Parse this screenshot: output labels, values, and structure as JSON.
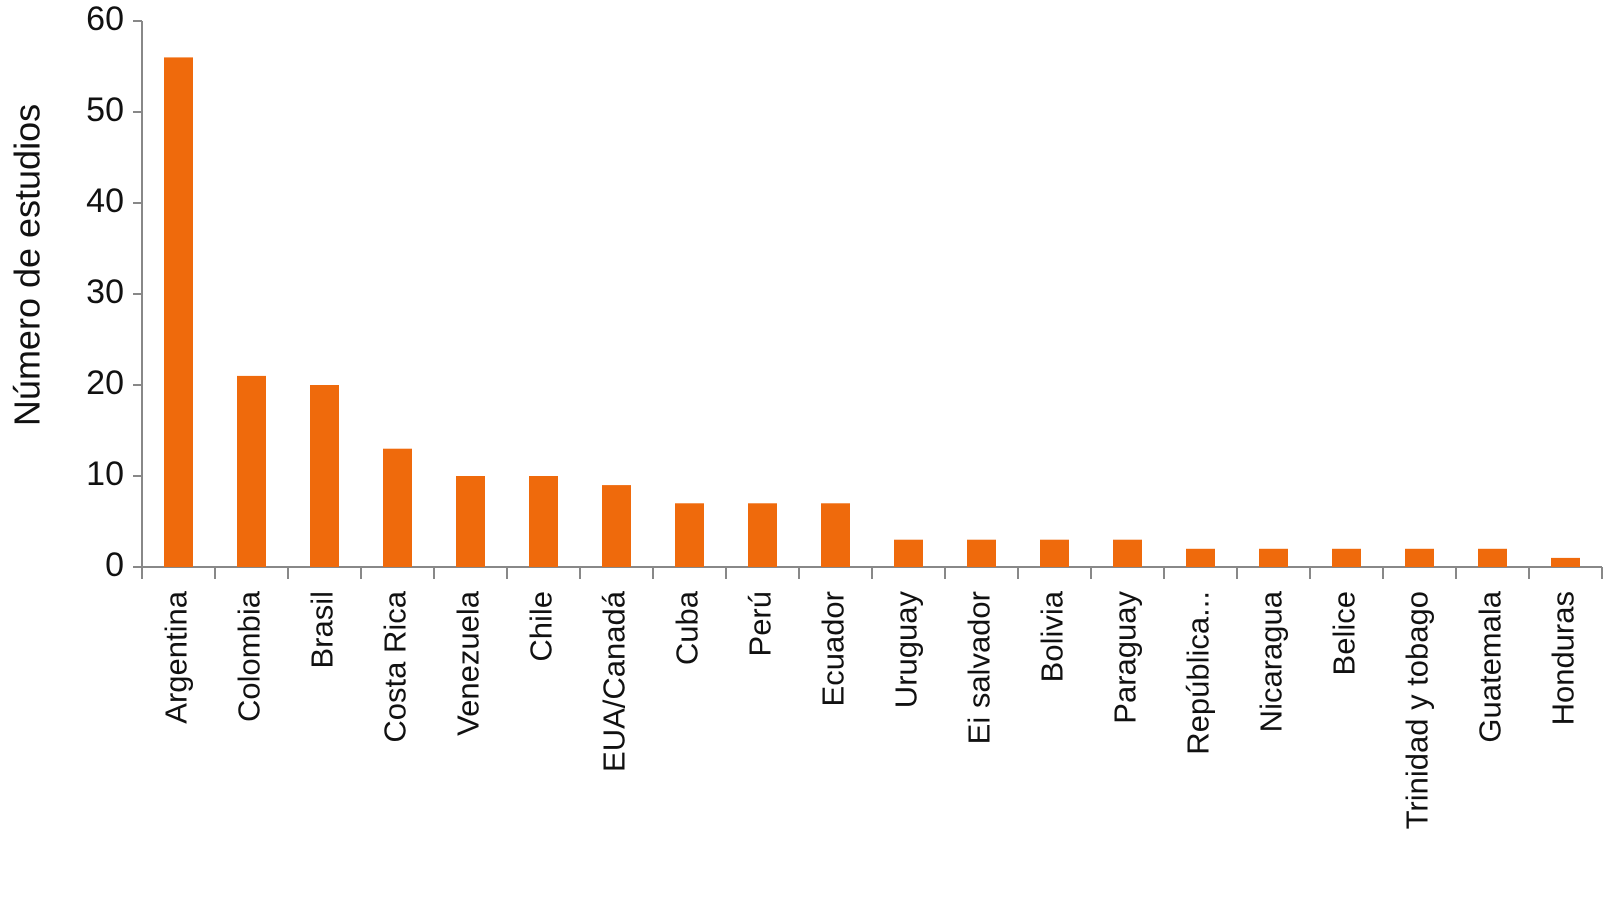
{
  "chart_data": {
    "type": "bar",
    "y_label": "Número de estudios",
    "categories": [
      "Argentina",
      "Colombia",
      "Brasil",
      "Costa Rica",
      "Venezuela",
      "Chile",
      "EUA/Canadá",
      "Cuba",
      "Perú",
      "Ecuador",
      "Uruguay",
      "Ei salvador",
      "Bolivia",
      "Paraguay",
      "República...",
      "Nicaragua",
      "Belice",
      "Trinidad y tobago",
      "Guatemala",
      "Honduras"
    ],
    "values": [
      56,
      21,
      20,
      13,
      10,
      10,
      9,
      7,
      7,
      7,
      3,
      3,
      3,
      3,
      2,
      2,
      2,
      2,
      2,
      1
    ],
    "color": "#ef6a0c",
    "ylim": [
      0,
      60
    ],
    "yticks": [
      0,
      10,
      20,
      30,
      40,
      50,
      60
    ],
    "grid": false
  }
}
